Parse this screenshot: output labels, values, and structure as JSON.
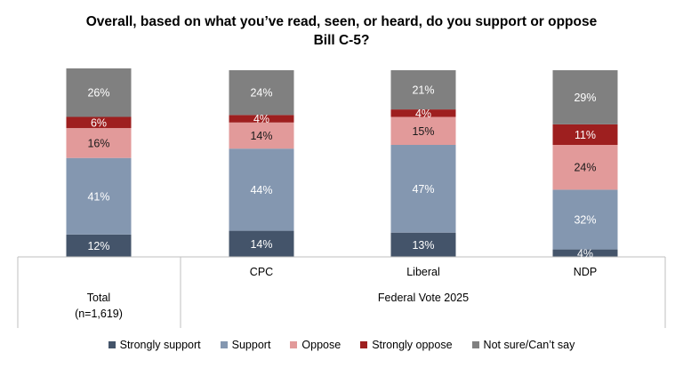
{
  "chart_data": {
    "type": "bar",
    "stacked": true,
    "title_lines": [
      "Overall, based on what you’ve read, seen, or heard, do you support or oppose",
      "Bill C-5?"
    ],
    "categories": [
      "Total",
      "CPC",
      "Liberal",
      "NDP"
    ],
    "group_labels": {
      "Total": "(n=1,619)",
      "federal_vote": "Federal Vote 2025"
    },
    "series": [
      {
        "name": "Strongly support",
        "color": "#44546a",
        "values": [
          12,
          14,
          13,
          4
        ]
      },
      {
        "name": "Support",
        "color": "#8497b0",
        "values": [
          41,
          44,
          47,
          32
        ]
      },
      {
        "name": "Oppose",
        "color": "#e29a9a",
        "values": [
          16,
          14,
          15,
          24
        ]
      },
      {
        "name": "Strongly oppose",
        "color": "#9e1f1f",
        "values": [
          6,
          4,
          4,
          11
        ]
      },
      {
        "name": "Not sure/Can’t say",
        "color": "#808080",
        "values": [
          26,
          24,
          21,
          29
        ]
      }
    ],
    "value_suffix": "%",
    "ylim": [
      0,
      100
    ],
    "legend_position": "bottom"
  }
}
